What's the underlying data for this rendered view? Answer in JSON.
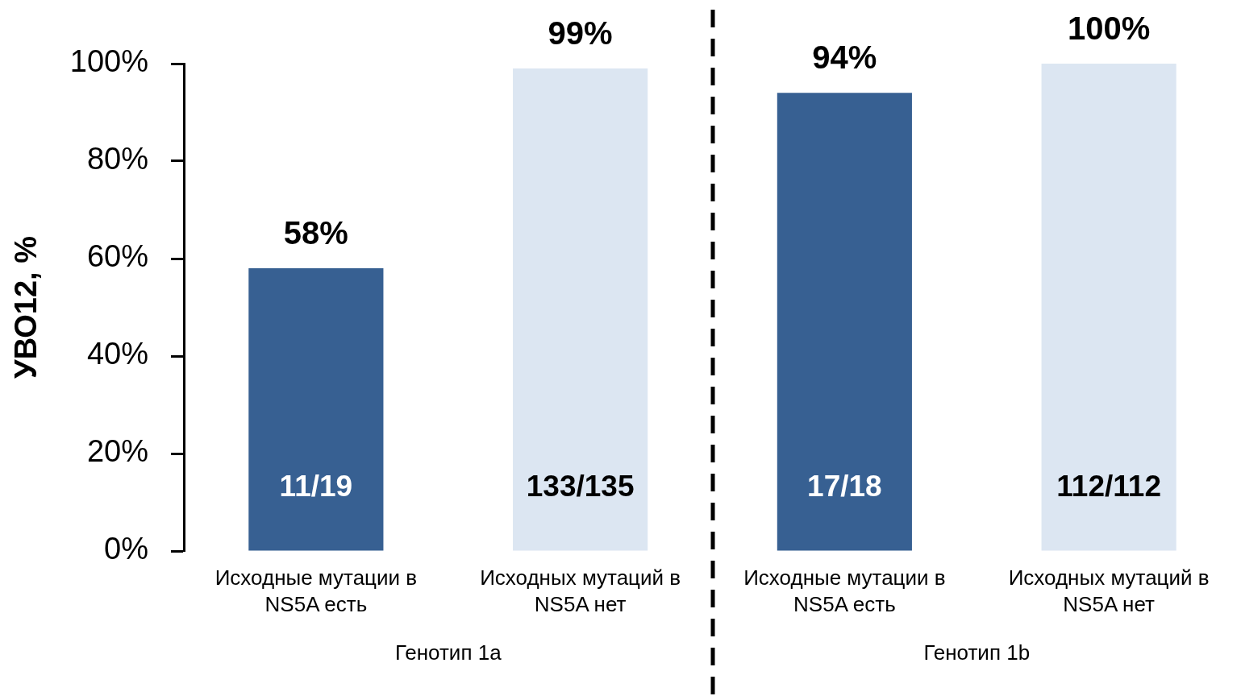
{
  "chart_data": {
    "type": "bar",
    "ylabel": "УВО12, %",
    "categories": [
      "Исходные мутации в NS5A есть",
      "Исходных мутаций в NS5A нет",
      "Исходные мутации в NS5A есть",
      "Исходных мутаций в NS5A нет"
    ],
    "values": [
      58,
      99,
      94,
      100
    ],
    "colors": [
      "#376092",
      "#dce6f2",
      "#376092",
      "#dce6f2"
    ],
    "value_labels": [
      "58%",
      "99%",
      "94%",
      "100%"
    ],
    "ylim": [
      0,
      100
    ],
    "yticks": [
      {
        "value": 0,
        "label": "0%"
      },
      {
        "value": 20,
        "label": "20%"
      },
      {
        "value": 40,
        "label": "40%"
      },
      {
        "value": 60,
        "label": "60%"
      },
      {
        "value": 80,
        "label": "80%"
      },
      {
        "value": 100,
        "label": "100%"
      }
    ],
    "annotations": [
      "11/19",
      "133/135",
      "17/18",
      "112/112",
      "Генотип 1a",
      "Генотип 1b"
    ]
  }
}
